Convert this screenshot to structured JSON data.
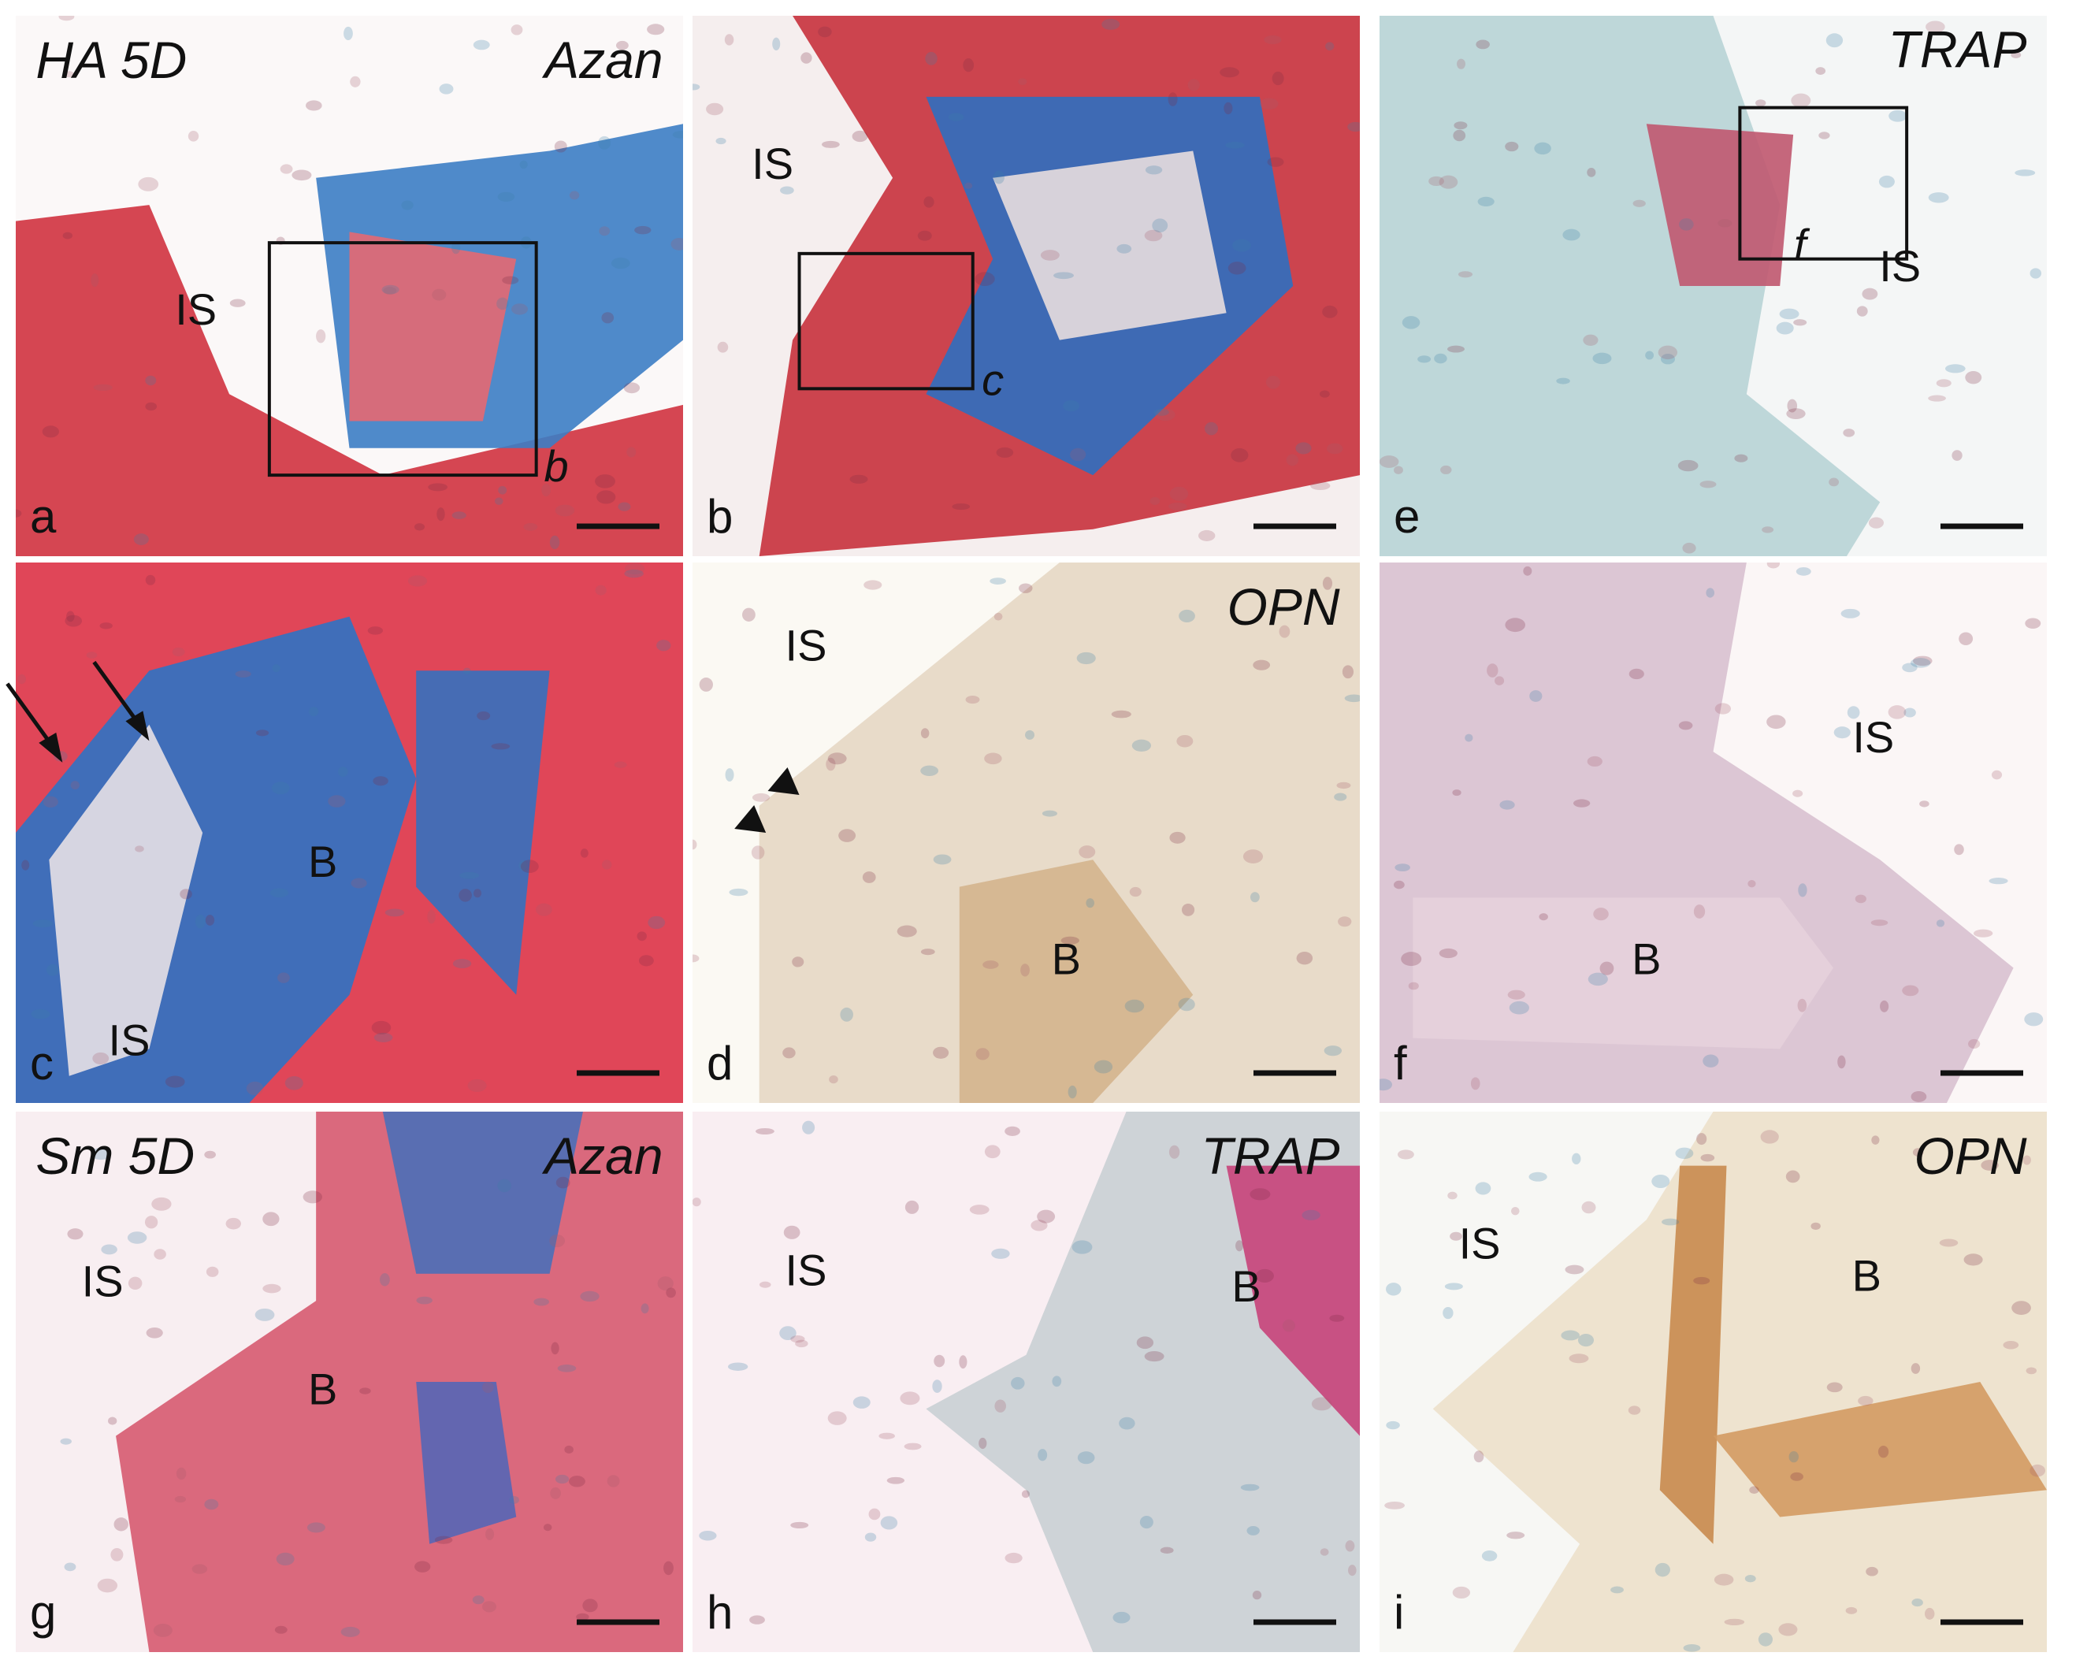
{
  "panels": [
    {
      "letter": "a",
      "labels": [
        "HA 5D",
        "Azan",
        "IS",
        "b"
      ]
    },
    {
      "letter": "b",
      "labels": [
        "IS",
        "c"
      ]
    },
    {
      "letter": "e",
      "labels": [
        "TRAP",
        "f",
        "IS"
      ]
    },
    {
      "letter": "c",
      "labels": [
        "B",
        "IS"
      ]
    },
    {
      "letter": "d",
      "labels": [
        "OPN",
        "IS",
        "B"
      ]
    },
    {
      "letter": "f",
      "labels": [
        "IS",
        "B"
      ]
    },
    {
      "letter": "g",
      "labels": [
        "Sm 5D",
        "Azan",
        "IS",
        "B"
      ]
    },
    {
      "letter": "h",
      "labels": [
        "TRAP",
        "IS",
        "B"
      ]
    },
    {
      "letter": "i",
      "labels": [
        "OPN",
        "IS",
        "B"
      ]
    }
  ]
}
